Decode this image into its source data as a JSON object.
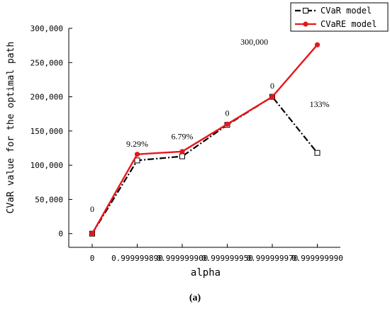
{
  "chart_data": {
    "type": "line",
    "title": "",
    "xlabel": "alpha",
    "ylabel": "CVaR value for the optimal path",
    "x_categories": [
      "0",
      "0.99999989",
      "0.99999990",
      "0.99999995",
      "0.99999997",
      "0.99999999"
    ],
    "x_tick_labels": [
      "0",
      "0.999999890",
      "0.999999900",
      "0.999999950",
      "0.999999970",
      "0.999999990"
    ],
    "ylim": [
      -20000,
      300000
    ],
    "yticks": [
      0,
      50000,
      100000,
      150000,
      200000,
      250000,
      300000
    ],
    "ytick_labels": [
      "0",
      "50,000",
      "100,000",
      "150,000",
      "200,000",
      "250,000",
      "300,000"
    ],
    "legend_position": "top-right",
    "series": [
      {
        "name": "CVaR model",
        "color": "#000000",
        "style": "dash-dot",
        "marker": "open-square",
        "values": [
          0,
          107000,
          113000,
          159000,
          200000,
          118000
        ]
      },
      {
        "name": "CVaRE model",
        "color": "#e8161c",
        "style": "solid",
        "marker": "filled-circle",
        "values": [
          0,
          116000,
          120000,
          160000,
          200000,
          276000
        ]
      }
    ],
    "annotations": [
      {
        "text": "0",
        "x_index": 0,
        "y": 32000
      },
      {
        "text": "9.29%",
        "x_index": 1,
        "y": 127000
      },
      {
        "text": "6.79%",
        "x_index": 2,
        "y": 138000
      },
      {
        "text": "0",
        "x_index": 3,
        "y": 172000
      },
      {
        "text": "0",
        "x_index": 4,
        "y": 212000
      },
      {
        "text": "133%",
        "x_index": 5.05,
        "y": 185000
      },
      {
        "text": "300,000",
        "x_index": 3.6,
        "y": 276000
      }
    ]
  },
  "caption": "(a)"
}
